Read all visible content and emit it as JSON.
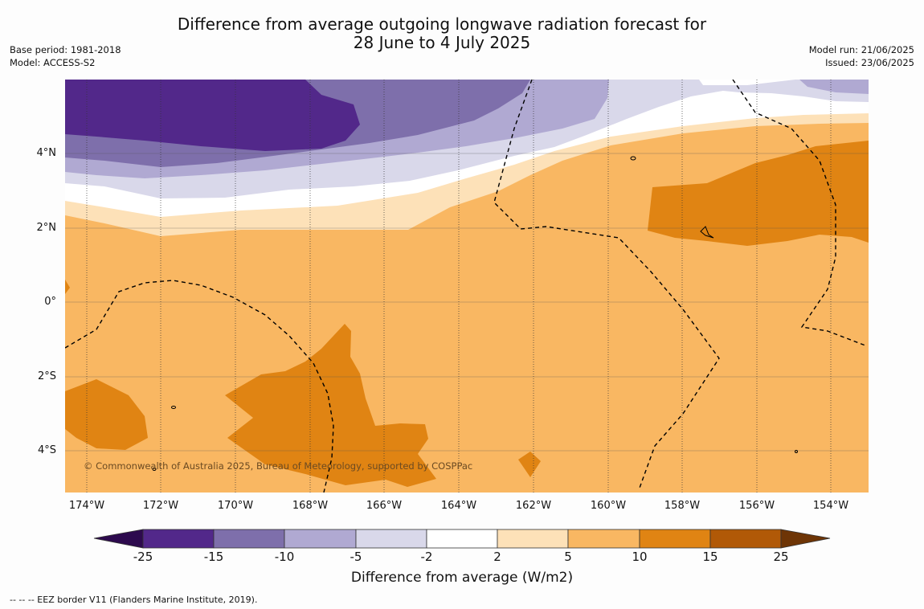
{
  "title": {
    "line1": "Difference from average outgoing longwave radiation forecast for",
    "line2": "28 June to 4 July 2025"
  },
  "meta_left": {
    "base_period": "Base period: 1981-2018",
    "model": "Model: ACCESS-S2"
  },
  "meta_right": {
    "model_run": "Model run: 21/06/2025",
    "issued": "Issued: 23/06/2025"
  },
  "map": {
    "latitude_labels": [
      "4°N",
      "2°N",
      "0°",
      "2°S",
      "4°S"
    ],
    "longitude_labels": [
      "174°W",
      "172°W",
      "170°W",
      "168°W",
      "166°W",
      "164°W",
      "162°W",
      "160°W",
      "158°W",
      "156°W",
      "154°W"
    ],
    "copyright": "© Commonwealth of Australia 2025, Bureau of Meteorology, supported by COSPPac",
    "palette": {
      "below_-25": "#2d0a4e",
      "-25_-15": "#52288a",
      "-15_-10": "#7e6fab",
      "-10_-5": "#b0a9d2",
      "-5_-2": "#d9d8ea",
      "-2_2": "#ffffff",
      "2_5": "#fde1b8",
      "5_10": "#f9b762",
      "10_15": "#e08413",
      "15_25": "#b15907",
      "above_25": "#6e3506"
    }
  },
  "colorbar": {
    "ticks": [
      "-25",
      "-15",
      "-10",
      "-5",
      "-2",
      "2",
      "5",
      "10",
      "15",
      "25"
    ],
    "title": "Difference from average (W/m2)"
  },
  "footer": "--  --  -- EEZ border V11 (Flanders Marine Institute, 2019)."
}
